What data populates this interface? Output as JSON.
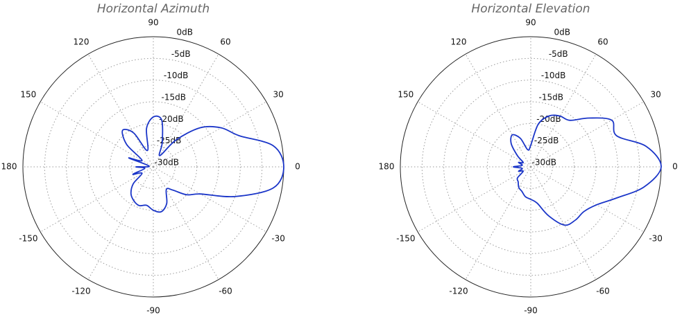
{
  "chart_data": [
    {
      "type": "polar",
      "title": "Horizontal Azimuth",
      "color": "#1a35c8",
      "grid": true,
      "rlim": [
        -30,
        0
      ],
      "rticks": [
        {
          "value": 0,
          "label": "0dB"
        },
        {
          "value": -5,
          "label": "-5dB"
        },
        {
          "value": -10,
          "label": "-10dB"
        },
        {
          "value": -15,
          "label": "-15dB"
        },
        {
          "value": -20,
          "label": "-20dB"
        },
        {
          "value": -25,
          "label": "-25dB"
        },
        {
          "value": -30,
          "label": "-30dB"
        }
      ],
      "thetaticks": [
        0,
        30,
        60,
        90,
        120,
        150,
        180,
        -150,
        -120,
        -90,
        -60,
        -30
      ],
      "theta": [
        0,
        10,
        20,
        30,
        40,
        50,
        60,
        70,
        80,
        90,
        100,
        110,
        120,
        130,
        140,
        150,
        160,
        170,
        180,
        -170,
        -160,
        -150,
        -140,
        -130,
        -120,
        -110,
        -100,
        -90,
        -80,
        -70,
        -60,
        -50,
        -40,
        -30,
        -20,
        -10
      ],
      "values": [
        0,
        -2,
        -9,
        -12,
        -16,
        -22,
        -27,
        -24,
        -19,
        -18.5,
        -21,
        -26,
        -21,
        -19,
        -22,
        -27,
        -24,
        -29,
        -26,
        -28,
        -25,
        -27,
        -24,
        -22,
        -21,
        -20.5,
        -21,
        -20,
        -19.5,
        -21,
        -24,
        -23,
        -20,
        -17.5,
        -10,
        -2
      ]
    },
    {
      "type": "polar",
      "title": "Horizontal Elevation",
      "color": "#1a35c8",
      "grid": true,
      "rlim": [
        -30,
        0
      ],
      "rticks": [
        {
          "value": 0,
          "label": "0dB"
        },
        {
          "value": -5,
          "label": "-5dB"
        },
        {
          "value": -10,
          "label": "-10dB"
        },
        {
          "value": -15,
          "label": "-15dB"
        },
        {
          "value": -20,
          "label": "-20dB"
        },
        {
          "value": -25,
          "label": "-25dB"
        },
        {
          "value": -30,
          "label": "-30dB"
        }
      ],
      "thetaticks": [
        0,
        30,
        60,
        90,
        120,
        150,
        180,
        -150,
        -120,
        -90,
        -60,
        -30
      ],
      "theta": [
        0,
        10,
        20,
        30,
        40,
        50,
        60,
        70,
        80,
        90,
        100,
        110,
        120,
        130,
        140,
        150,
        160,
        170,
        180,
        -170,
        -160,
        -150,
        -140,
        -130,
        -120,
        -110,
        -100,
        -90,
        -80,
        -70,
        -60,
        -50,
        -40,
        -30,
        -20,
        -10
      ],
      "values": [
        0,
        -3,
        -9,
        -8.5,
        -12.5,
        -16,
        -16.5,
        -17.5,
        -20,
        -25,
        -26,
        -23,
        -21.5,
        -23,
        -26,
        -28,
        -27,
        -28,
        -26,
        -28,
        -27,
        -28,
        -26,
        -25.5,
        -24.5,
        -24,
        -23,
        -22.5,
        -21.5,
        -18,
        -14.5,
        -14,
        -14,
        -12.5,
        -9,
        -3.5
      ]
    }
  ]
}
